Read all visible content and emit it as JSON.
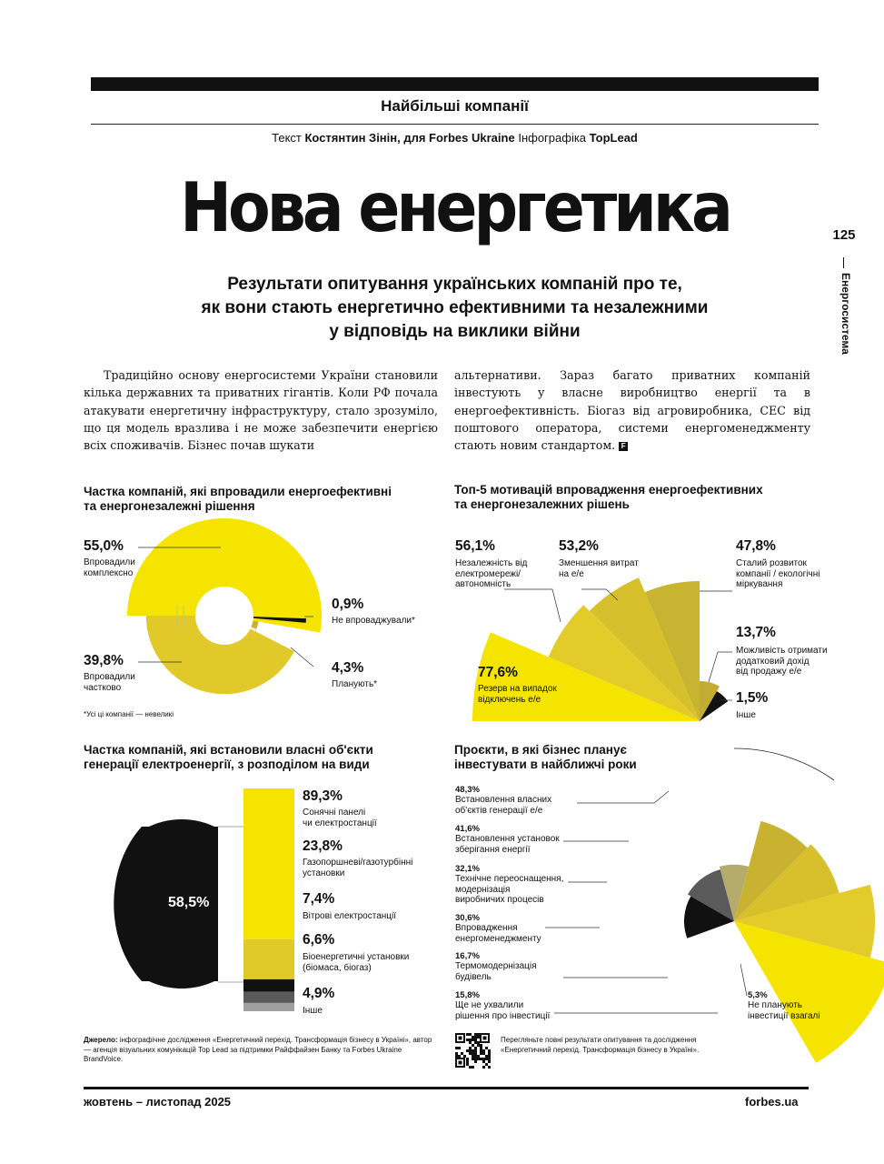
{
  "section": "Найбільші компанії",
  "credits": {
    "text_label": "Текст",
    "author": "Костянтин Зінін, для Forbes Ukraine",
    "info_label": "Інфографіка",
    "info_author": "TopLead"
  },
  "headline": "Нова енергетика",
  "subhead": {
    "line1": "Результати опитування українських компаній про те,",
    "line2": "як вони стають енергетично ефективними та незалежними",
    "line3": "у відповідь на виклики війни"
  },
  "body": {
    "left": "Традиційно основу енергосистеми України становили кілька державних та приватних гігантів. Коли РФ почала атакувати енергетичну інфраструктуру, стало зрозуміло, що ця модель вразлива і не може забезпечити енергією всіх споживачів. Бізнес почав шукати",
    "right": "альтернативи. Зараз багато приватних компаній інвестують у власне виробництво енергії та в енергоефективність. Біогаз від агровиробника, СЕС від поштового оператора, системи енергоменеджменту стають новим стандартом.",
    "end_mark": "F"
  },
  "sidebar": {
    "page_number": "125",
    "section_name": "Енергосистема"
  },
  "colors": {
    "yellow": "#f5e400",
    "gold": "#e0c928",
    "olive": "#c8b230",
    "khaki": "#b5ab6a",
    "grey": "#5a5a5a",
    "lightgrey": "#a0a0a0",
    "black": "#111111"
  },
  "chart_data": [
    {
      "type": "pie",
      "title_line1": "Частка компаній, які впровадили енергоефективні",
      "title_line2": "та енергонезалежні рішення",
      "slices": [
        {
          "value": 55.0,
          "label": "55,0%",
          "name_line1": "Впровадили",
          "name_line2": "комплексно"
        },
        {
          "value": 39.8,
          "label": "39,8%",
          "name_line1": "Впровадили",
          "name_line2": "частково"
        },
        {
          "value": 4.3,
          "label": "4,3%",
          "name_line1": "Планують*",
          "name_line2": ""
        },
        {
          "value": 0.9,
          "label": "0,9%",
          "name_line1": "Не впроваджували*",
          "name_line2": ""
        }
      ],
      "footnote": "*Усі ці компанії — невеликі"
    },
    {
      "type": "pie",
      "title_line1": "Топ-5 мотивацій впровадження енергоефективних",
      "title_line2": "та енергонезалежних рішень",
      "slices": [
        {
          "value": 77.6,
          "label": "77,6%",
          "name_line1": "Резерв на випадок",
          "name_line2": "відключень е/е",
          "name_line3": ""
        },
        {
          "value": 56.1,
          "label": "56,1%",
          "name_line1": "Незалежність від",
          "name_line2": "електромережі/",
          "name_line3": "автономність"
        },
        {
          "value": 53.2,
          "label": "53,2%",
          "name_line1": "Зменшення витрат",
          "name_line2": "на е/е",
          "name_line3": ""
        },
        {
          "value": 47.8,
          "label": "47,8%",
          "name_line1": "Сталий розвиток",
          "name_line2": "компанії / екологічні",
          "name_line3": "міркування"
        },
        {
          "value": 13.7,
          "label": "13,7%",
          "name_line1": "Можливість отримати",
          "name_line2": "додатковий дохід",
          "name_line3": "від продажу е/е"
        },
        {
          "value": 1.5,
          "label": "1,5%",
          "name_line1": "Інше",
          "name_line2": "",
          "name_line3": ""
        }
      ]
    },
    {
      "type": "bar",
      "title_line1": "Частка компаній, які встановили власні об'єкти",
      "title_line2": "генерації електроенергії, з розподілом на види",
      "share_value": 58.5,
      "share_label": "58,5%",
      "categories": [
        {
          "value": 89.3,
          "label": "89,3%",
          "name_line1": "Сонячні панелі",
          "name_line2": "чи електростанції"
        },
        {
          "value": 23.8,
          "label": "23,8%",
          "name_line1": "Газопоршневі/газотурбінні",
          "name_line2": "установки"
        },
        {
          "value": 7.4,
          "label": "7,4%",
          "name_line1": "Вітрові електростанції",
          "name_line2": ""
        },
        {
          "value": 6.6,
          "label": "6,6%",
          "name_line1": "Біоенергетичні установки",
          "name_line2": "(біомаса, біогаз)"
        },
        {
          "value": 4.9,
          "label": "4,9%",
          "name_line1": "Інше",
          "name_line2": ""
        }
      ]
    },
    {
      "type": "pie",
      "title_line1": "Проєкти, в які бізнес планує",
      "title_line2": "інвестувати в найближчі роки",
      "slices": [
        {
          "value": 48.3,
          "label": "48,3%",
          "name_line1": "Встановлення власних",
          "name_line2": "об'єктів генерації е/е",
          "name_line3": ""
        },
        {
          "value": 41.6,
          "label": "41,6%",
          "name_line1": "Встановлення установок",
          "name_line2": "зберігання енергії",
          "name_line3": ""
        },
        {
          "value": 32.1,
          "label": "32,1%",
          "name_line1": "Технічне переоснащення,",
          "name_line2": "модернізація",
          "name_line3": "виробничих процесів"
        },
        {
          "value": 30.6,
          "label": "30,6%",
          "name_line1": "Впровадження",
          "name_line2": "енергоменеджменту",
          "name_line3": ""
        },
        {
          "value": 16.7,
          "label": "16,7%",
          "name_line1": "Термомодернізація",
          "name_line2": "будівель",
          "name_line3": ""
        },
        {
          "value": 15.8,
          "label": "15,8%",
          "name_line1": "Ще не ухвалили",
          "name_line2": "рішення про інвестиції",
          "name_line3": ""
        },
        {
          "value": 5.3,
          "label": "5,3%",
          "name_line1": "Не планують",
          "name_line2": "інвестиції взагалі",
          "name_line3": ""
        }
      ]
    }
  ],
  "source": {
    "label": "Джерело:",
    "line1": "інфографічне дослідження «Енергетичний перехід. Трансформація бізнесу в Україні», автор",
    "line2": "— агенція візуальних комунікацій Top Lead за підтримки Райффайзен Банку та Forbes Ukraine",
    "line3": "BrandVoice."
  },
  "qr_note": {
    "line1": "Перегляньте повні результати опитування та дослідження",
    "line2": "«Енергетичний перехід. Трансформація бізнесу в Україні»."
  },
  "footer": {
    "date": "жовтень – листопад 2025",
    "site": "forbes.ua"
  }
}
